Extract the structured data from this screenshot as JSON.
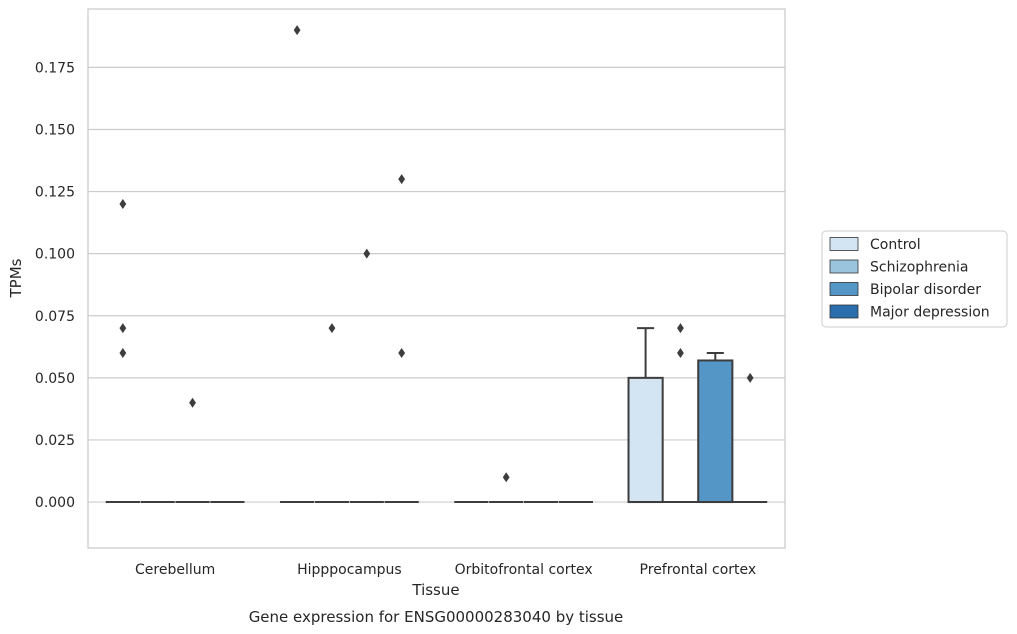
{
  "chart_data": {
    "type": "box",
    "xlabel": "Tissue",
    "ylabel": "TPMs",
    "caption": "Gene expression for ENSG00000283040 by tissue",
    "ylim": [
      -0.0185,
      0.1985
    ],
    "yticks": [
      "0.000",
      "0.025",
      "0.050",
      "0.075",
      "0.100",
      "0.125",
      "0.150",
      "0.175"
    ],
    "ytick_values": [
      0,
      0.025,
      0.05,
      0.075,
      0.1,
      0.125,
      0.15,
      0.175
    ],
    "grid": "horizontal",
    "legend_position": "right",
    "categories": [
      "Cerebellum",
      "Hipppocampus",
      "Orbitofrontal cortex",
      "Prefrontal cortex"
    ],
    "series": [
      {
        "name": "Control",
        "color": "#d3e4f3",
        "boxes": [
          {
            "q1": 0,
            "median": 0,
            "q3": 0,
            "whisker_low": 0,
            "whisker_high": 0,
            "outliers": [
              0.12,
              0.07,
              0.06
            ]
          },
          {
            "q1": 0,
            "median": 0,
            "q3": 0,
            "whisker_low": 0,
            "whisker_high": 0,
            "outliers": [
              0.19
            ]
          },
          {
            "q1": 0,
            "median": 0,
            "q3": 0,
            "whisker_low": 0,
            "whisker_high": 0,
            "outliers": []
          },
          {
            "q1": 0,
            "median": 0,
            "q3": 0.05,
            "whisker_low": 0,
            "whisker_high": 0.07,
            "outliers": []
          }
        ]
      },
      {
        "name": "Schizophrenia",
        "color": "#9ac4de",
        "boxes": [
          {
            "q1": 0,
            "median": 0,
            "q3": 0,
            "whisker_low": 0,
            "whisker_high": 0,
            "outliers": []
          },
          {
            "q1": 0,
            "median": 0,
            "q3": 0,
            "whisker_low": 0,
            "whisker_high": 0,
            "outliers": [
              0.07
            ]
          },
          {
            "q1": 0,
            "median": 0,
            "q3": 0,
            "whisker_low": 0,
            "whisker_high": 0,
            "outliers": [
              0.01
            ]
          },
          {
            "q1": 0,
            "median": 0,
            "q3": 0,
            "whisker_low": 0,
            "whisker_high": 0,
            "outliers": [
              0.07,
              0.06
            ]
          }
        ]
      },
      {
        "name": "Bipolar disorder",
        "color": "#5497c6",
        "boxes": [
          {
            "q1": 0,
            "median": 0,
            "q3": 0,
            "whisker_low": 0,
            "whisker_high": 0,
            "outliers": [
              0.04
            ]
          },
          {
            "q1": 0,
            "median": 0,
            "q3": 0,
            "whisker_low": 0,
            "whisker_high": 0,
            "outliers": [
              0.1
            ]
          },
          {
            "q1": 0,
            "median": 0,
            "q3": 0,
            "whisker_low": 0,
            "whisker_high": 0,
            "outliers": []
          },
          {
            "q1": 0,
            "median": 0,
            "q3": 0.057,
            "whisker_low": 0,
            "whisker_high": 0.06,
            "outliers": []
          }
        ]
      },
      {
        "name": "Major depression",
        "color": "#2a6ead",
        "boxes": [
          {
            "q1": 0,
            "median": 0,
            "q3": 0,
            "whisker_low": 0,
            "whisker_high": 0,
            "outliers": []
          },
          {
            "q1": 0,
            "median": 0,
            "q3": 0,
            "whisker_low": 0,
            "whisker_high": 0,
            "outliers": [
              0.13,
              0.06
            ]
          },
          {
            "q1": 0,
            "median": 0,
            "q3": 0,
            "whisker_low": 0,
            "whisker_high": 0,
            "outliers": []
          },
          {
            "q1": 0,
            "median": 0,
            "q3": 0,
            "whisker_low": 0,
            "whisker_high": 0,
            "outliers": [
              0.05
            ]
          }
        ]
      }
    ]
  }
}
